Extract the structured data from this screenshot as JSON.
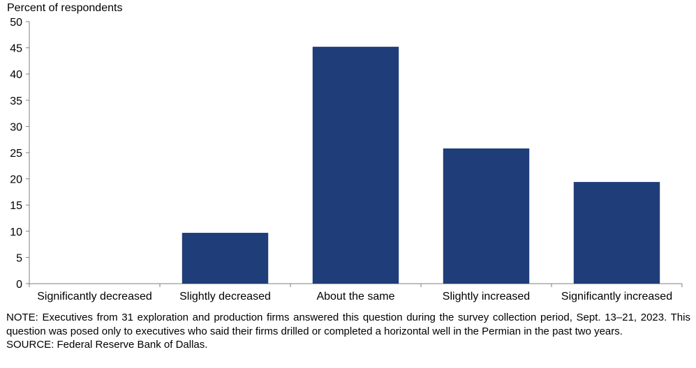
{
  "chart_data": {
    "type": "bar",
    "ylabel": "Percent of respondents",
    "xlabel": "",
    "categories": [
      "Significantly decreased",
      "Slightly decreased",
      "About the same",
      "Slightly increased",
      "Significantly increased"
    ],
    "values": [
      0,
      9.7,
      45.2,
      25.8,
      19.4
    ],
    "ylim": [
      0,
      50
    ],
    "yticks": [
      0,
      5,
      10,
      15,
      20,
      25,
      30,
      35,
      40,
      45,
      50
    ],
    "grid": false,
    "legend": "none",
    "bar_color": "#1f3d78"
  },
  "notes": {
    "note": "NOTE: Executives from 31 exploration and production firms answered this question during the survey collection period, Sept. 13–21, 2023. This question was posed only to executives who said their firms drilled or completed a horizontal well in the Permian in the past two years.",
    "source": "SOURCE: Federal Reserve Bank of Dallas."
  }
}
